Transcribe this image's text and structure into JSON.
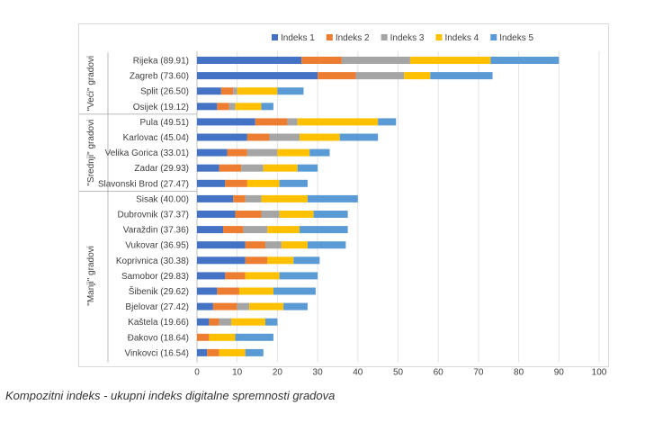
{
  "caption": "Kompozitni indeks - ukupni indeks digitalne spremnosti gradova",
  "chart_data": {
    "type": "bar",
    "orientation": "horizontal",
    "stacked": true,
    "xlim": [
      0,
      100
    ],
    "x_ticks": [
      0,
      10,
      20,
      30,
      40,
      50,
      60,
      70,
      80,
      90,
      100
    ],
    "legend_position": "top",
    "series_colors": [
      "#4472c4",
      "#ed7d31",
      "#a5a5a5",
      "#ffc000",
      "#5b9bd5"
    ],
    "groups": [
      {
        "label": "\"Veći\" gradovi",
        "start": 0,
        "end": 3
      },
      {
        "label": "\"Srednji\" gradovi",
        "start": 4,
        "end": 8
      },
      {
        "label": "\"Manji\" gradovi",
        "start": 9,
        "end": 19
      }
    ],
    "categories": [
      "Rijeka (89.91)",
      "Zagreb (73.60)",
      "Split (26.50)",
      "Osijek (19.12)",
      "Pula (49.51)",
      "Karlovac (45.04)",
      "Velika Gorica (33.01)",
      "Zadar (29.93)",
      "Slavonski Brod (27.47)",
      "Sisak (40.00)",
      "Dubrovnik (37.37)",
      "Varaždin (37.36)",
      "Vukovar (36.95)",
      "Koprivnica (30.38)",
      "Samobor (29.83)",
      "Šibenik (29.62)",
      "Bjelovar (27.42)",
      "Kaštela (19.66)",
      "Đakovo (18.64)",
      "Vinkovci (16.54)"
    ],
    "series": [
      {
        "name": "Indeks 1",
        "values": [
          26,
          30,
          6,
          5,
          14.5,
          12.5,
          7.5,
          5.5,
          7,
          9,
          9.5,
          6.5,
          12,
          12,
          7,
          5,
          4,
          3,
          0,
          2.5
        ]
      },
      {
        "name": "Indeks 2",
        "values": [
          10,
          9.5,
          3,
          3,
          8,
          5.5,
          5,
          5.5,
          5.5,
          3,
          6.5,
          5,
          5,
          5.5,
          5,
          5.5,
          6,
          2.5,
          3,
          3
        ]
      },
      {
        "name": "Indeks 3",
        "values": [
          17,
          12,
          1,
          1.5,
          2.5,
          7.5,
          7.5,
          5.5,
          0,
          4,
          4.5,
          6,
          4,
          0,
          0,
          0,
          3,
          3,
          0,
          0
        ]
      },
      {
        "name": "Indeks 4",
        "values": [
          20,
          6.5,
          10,
          6.5,
          20,
          10,
          8,
          8.5,
          8,
          11.5,
          8.5,
          8,
          6.5,
          6.5,
          8.5,
          8.5,
          8.5,
          8.5,
          6.5,
          6.5
        ]
      },
      {
        "name": "Indeks 5",
        "values": [
          17,
          15.5,
          6.5,
          3,
          4.5,
          9.5,
          5,
          5,
          7,
          12.5,
          8.5,
          12,
          9.5,
          6.5,
          9.5,
          10.5,
          6,
          3,
          9.5,
          4.5
        ]
      }
    ]
  }
}
